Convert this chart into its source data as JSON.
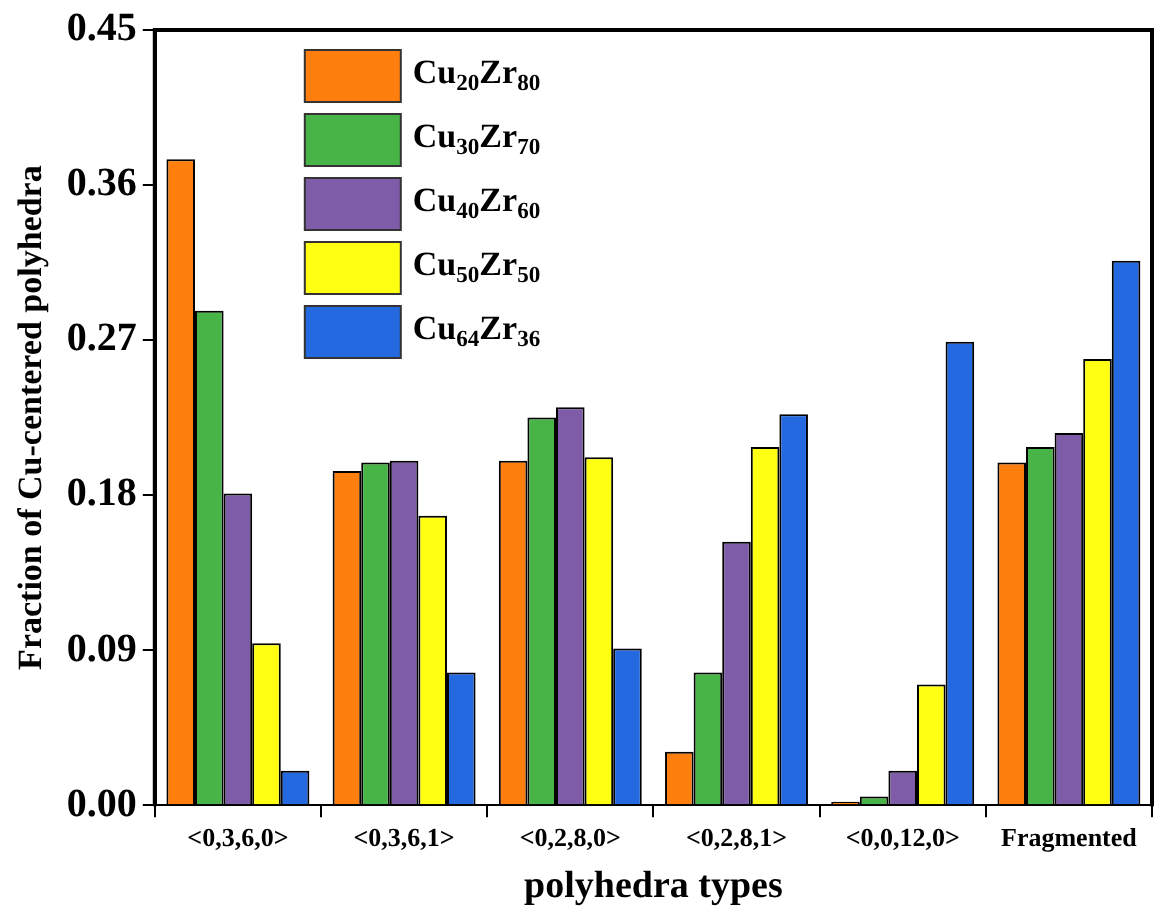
{
  "chart_data": {
    "type": "bar",
    "xlabel": "polyhedra types",
    "ylabel": "Fraction of Cu-centered polyhedra",
    "categories": [
      "<0,3,6,0>",
      "<0,3,6,1>",
      "<0,2,8,0>",
      "<0,2,8,1>",
      "<0,0,12,0>",
      "Fragmented"
    ],
    "series": [
      {
        "name": "Cu$_{20}$Zr$_{80}$",
        "color": "#ff7f0e",
        "values": [
          0.375,
          0.194,
          0.2,
          0.031,
          0.002,
          0.199
        ]
      },
      {
        "name": "Cu$_{30}$Zr$_{70}$",
        "color": "#48b447",
        "values": [
          0.287,
          0.199,
          0.225,
          0.077,
          0.005,
          0.208
        ]
      },
      {
        "name": "Cu$_{40}$Zr$_{60}$",
        "color": "#7f5ca8",
        "values": [
          0.181,
          0.2,
          0.231,
          0.153,
          0.02,
          0.216
        ]
      },
      {
        "name": "Cu$_{50}$Zr$_{50}$",
        "color": "#ffff14",
        "values": [
          0.094,
          0.168,
          0.202,
          0.208,
          0.07,
          0.259
        ]
      },
      {
        "name": "Cu$_{64}$Zr$_{36}$",
        "color": "#2469e0",
        "values": [
          0.02,
          0.077,
          0.091,
          0.227,
          0.269,
          0.316
        ]
      }
    ],
    "ylim": [
      0,
      0.45
    ],
    "yticks": [
      {
        "value": 0,
        "label": "0.00"
      },
      0.09,
      0.18,
      0.27,
      0.36,
      0.45
    ],
    "grid": false,
    "legend": "top left"
  }
}
